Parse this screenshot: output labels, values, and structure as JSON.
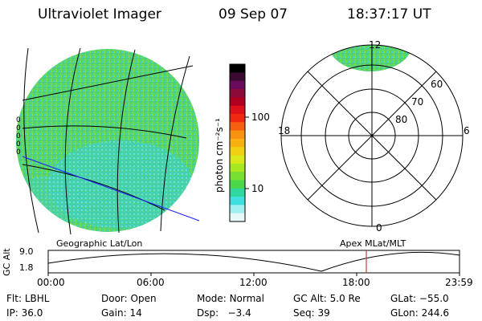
{
  "header": {
    "instrument": "Ultraviolet Imager",
    "date": "09 Sep 07",
    "time": "18:37:17 UT"
  },
  "left_panel": {
    "caption": "Geographic Lat/Lon",
    "edge_marks": "0\n0\n0\n0\n0"
  },
  "colorbar": {
    "unit_label": "photon cm⁻²s⁻¹",
    "ticks": [
      "100",
      "10"
    ],
    "colors": [
      "#000000",
      "#3a0a30",
      "#6a0a5a",
      "#8a0a3a",
      "#b00020",
      "#e0101a",
      "#f02810",
      "#f56010",
      "#f89010",
      "#f8b010",
      "#f0d010",
      "#d8e818",
      "#a8e820",
      "#78e030",
      "#48d848",
      "#30d8a0",
      "#40e0e0",
      "#a0f0f0",
      "#e8f8f8"
    ]
  },
  "polar": {
    "caption": "Apex MLat/MLT",
    "mlt_labels": {
      "top": "12",
      "bottom": "0",
      "left": "18",
      "right": "6"
    },
    "lat_labels": [
      "60",
      "70",
      "80"
    ]
  },
  "altitude_strip": {
    "axis_label": "GC Alt",
    "y_ticks": [
      "9.0",
      "1.8"
    ],
    "time_ticks": [
      "00:00",
      "06:00",
      "12:00",
      "18:00",
      "23:59"
    ],
    "current_marker_time": "18:37",
    "marker_color": "#c04040"
  },
  "status": {
    "row1": [
      {
        "label": "Flt:",
        "value": "LBHL"
      },
      {
        "label": "Door:",
        "value": "Open"
      },
      {
        "label": "Mode:",
        "value": "Normal"
      },
      {
        "label": "GC Alt:",
        "value": "5.0 Re"
      },
      {
        "label": "GLat:",
        "value": "−55.0"
      }
    ],
    "row2": [
      {
        "label": "IP:",
        "value": "36.0"
      },
      {
        "label": "Gain:",
        "value": "14"
      },
      {
        "label": "Dsp:",
        "value": "  −3.4"
      },
      {
        "label": "Seq:",
        "value": "39"
      },
      {
        "label": "GLon:",
        "value": "244.6"
      }
    ]
  }
}
